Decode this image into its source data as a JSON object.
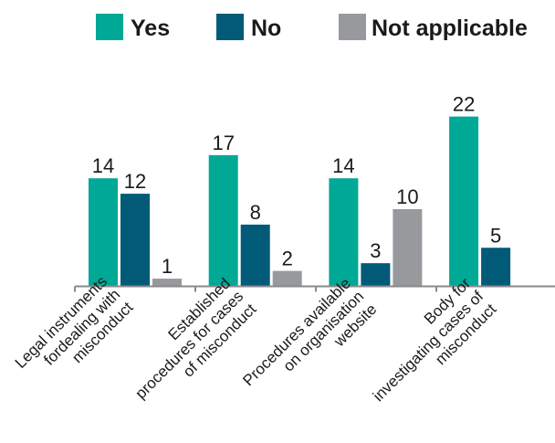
{
  "chart_data": {
    "type": "bar",
    "categories": [
      [
        "Legal instruments",
        "fordealing with",
        "misconduct"
      ],
      [
        "Established",
        "procedures for cases",
        "of misconduct"
      ],
      [
        "Procedures available",
        "on organisation",
        "website"
      ],
      [
        "Body for",
        "investigating cases of",
        "misconduct"
      ]
    ],
    "series": [
      {
        "name": "Yes",
        "color": "#00a896",
        "values": [
          14,
          17,
          14,
          22
        ]
      },
      {
        "name": "No",
        "color": "#005a78",
        "values": [
          12,
          8,
          3,
          5
        ]
      },
      {
        "name": "Not applicable",
        "color": "#97999c",
        "values": [
          1,
          2,
          10,
          null
        ]
      }
    ],
    "ylim": [
      0,
      24
    ],
    "grid": false,
    "legend_position": "top",
    "axis_color": "#8a8a8a"
  }
}
